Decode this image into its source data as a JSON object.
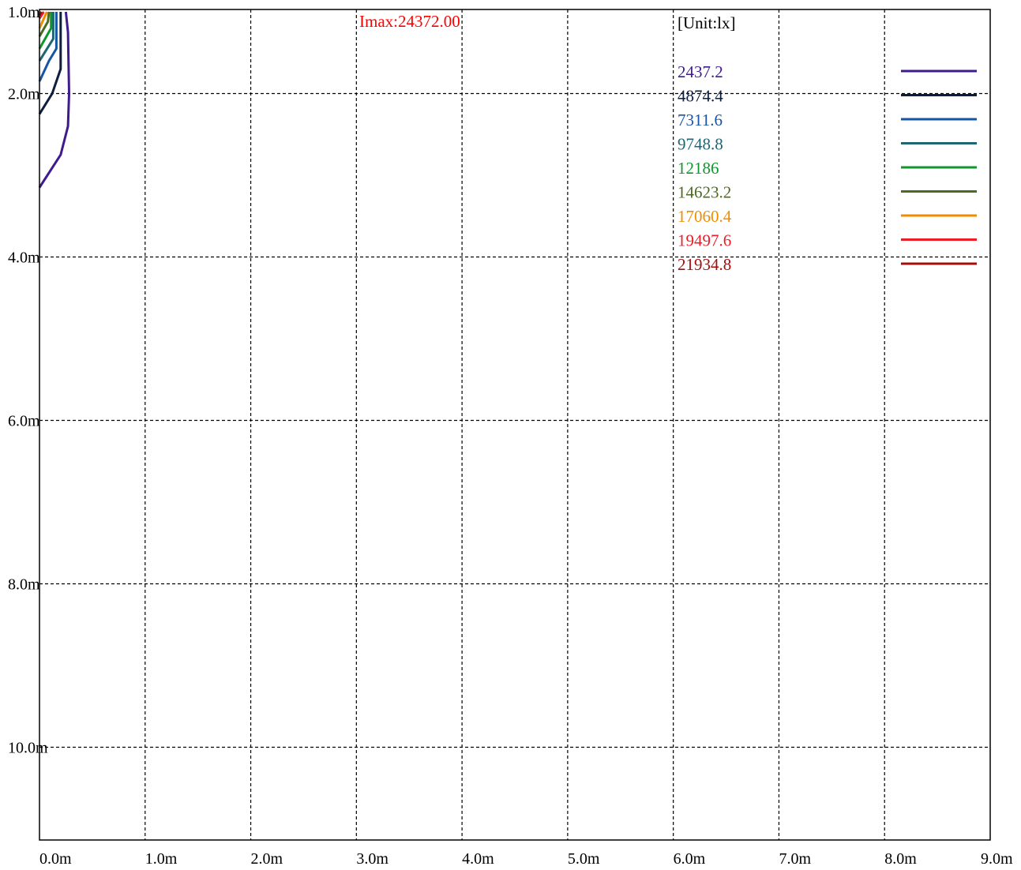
{
  "chart_data": {
    "type": "contour",
    "imax_label": "Imax:24372.00",
    "imax_color": "#ff0000",
    "unit_label": "[Unit:lx]",
    "x_tick_labels": [
      "0.0m",
      "1.0m",
      "2.0m",
      "3.0m",
      "4.0m",
      "5.0m",
      "6.0m",
      "7.0m",
      "8.0m",
      "9.0m"
    ],
    "y_tick_labels": [
      "1.0m",
      "2.0m",
      "4.0m",
      "6.0m",
      "8.0m",
      "10.0m"
    ],
    "xlim": [
      0,
      9
    ],
    "ylim": [
      1,
      11.5
    ],
    "grid": true,
    "legend_position": "top-right",
    "series": [
      {
        "name": "2437.2",
        "color": "#3f1b8c"
      },
      {
        "name": "4874.4",
        "color": "#0e1f3e"
      },
      {
        "name": "7311.6",
        "color": "#1654a4"
      },
      {
        "name": "9748.8",
        "color": "#1f6673"
      },
      {
        "name": "12186",
        "color": "#10962e"
      },
      {
        "name": "14623.2",
        "color": "#4c6b1f"
      },
      {
        "name": "17060.4",
        "color": "#f08c00"
      },
      {
        "name": "19497.6",
        "color": "#ee1c25"
      },
      {
        "name": "21934.8",
        "color": "#a50d0d"
      }
    ],
    "contours": [
      {
        "level": "2437.2",
        "points": [
          [
            0.25,
            1.0
          ],
          [
            0.27,
            1.25
          ],
          [
            0.28,
            2.0
          ],
          [
            0.27,
            2.4
          ],
          [
            0.2,
            2.75
          ],
          [
            0.0,
            3.15
          ]
        ]
      },
      {
        "level": "4874.4",
        "points": [
          [
            0.2,
            1.0
          ],
          [
            0.2,
            1.7
          ],
          [
            0.12,
            2.0
          ],
          [
            0.0,
            2.25
          ]
        ]
      },
      {
        "level": "7311.6",
        "points": [
          [
            0.16,
            1.0
          ],
          [
            0.16,
            1.45
          ],
          [
            0.09,
            1.6
          ],
          [
            0.0,
            1.85
          ]
        ]
      },
      {
        "level": "9748.8",
        "points": [
          [
            0.13,
            1.0
          ],
          [
            0.13,
            1.33
          ],
          [
            0.0,
            1.6
          ]
        ]
      },
      {
        "level": "12186",
        "points": [
          [
            0.11,
            1.0
          ],
          [
            0.11,
            1.2
          ],
          [
            0.0,
            1.45
          ]
        ]
      },
      {
        "level": "14623.2",
        "points": [
          [
            0.09,
            1.0
          ],
          [
            0.08,
            1.12
          ],
          [
            0.0,
            1.3
          ]
        ]
      },
      {
        "level": "17060.4",
        "points": [
          [
            0.07,
            1.0
          ],
          [
            0.0,
            1.2
          ]
        ]
      },
      {
        "level": "19497.6",
        "points": [
          [
            0.04,
            1.0
          ],
          [
            0.0,
            1.08
          ]
        ]
      },
      {
        "level": "21934.8",
        "points": [
          [
            0.02,
            1.0
          ],
          [
            0.0,
            1.04
          ]
        ]
      }
    ]
  }
}
